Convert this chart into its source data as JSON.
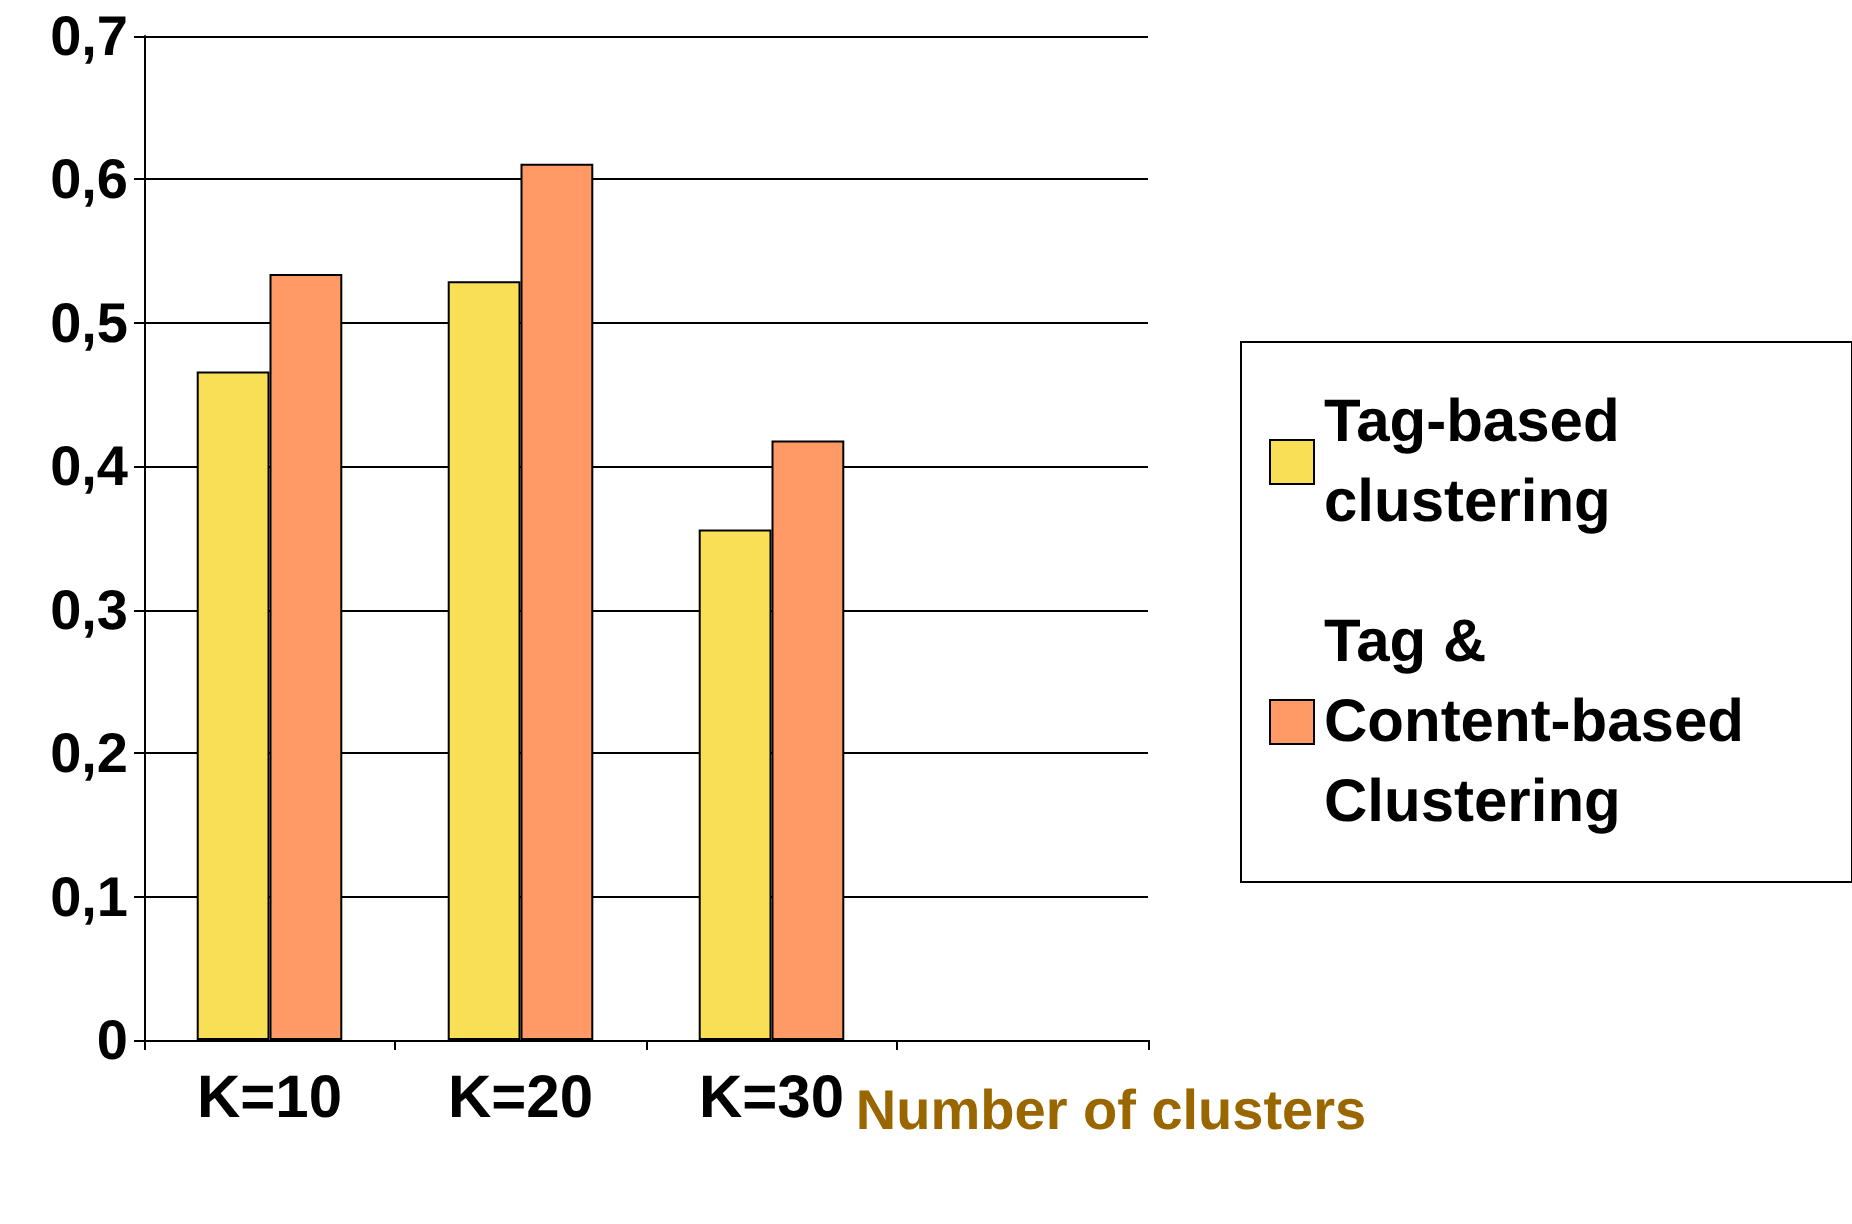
{
  "chart_data": {
    "type": "bar",
    "xlabel": "Number of clusters",
    "categories": [
      "K=10",
      "K=20",
      "K=30",
      null
    ],
    "series": [
      {
        "name": "Tag-based clustering",
        "color": "#f9df55",
        "values": [
          0.466,
          0.529,
          0.356,
          null
        ]
      },
      {
        "name": "Tag & Content-based Clustering",
        "color": "#ff9966",
        "values": [
          0.534,
          0.611,
          0.418,
          null
        ]
      }
    ],
    "ylim": [
      0,
      0.7
    ],
    "yticks": [
      0,
      {
        "value": 0.1,
        "label": "0,1"
      },
      {
        "value": 0.2,
        "label": "0,2"
      },
      {
        "value": 0.3,
        "label": "0,3"
      },
      {
        "value": 0.4,
        "label": "0,4"
      },
      {
        "value": 0.5,
        "label": "0,5"
      },
      {
        "value": 0.6,
        "label": "0,6"
      },
      {
        "value": 0.7,
        "label": "0,7"
      }
    ],
    "grid": "y",
    "legend": "right"
  }
}
